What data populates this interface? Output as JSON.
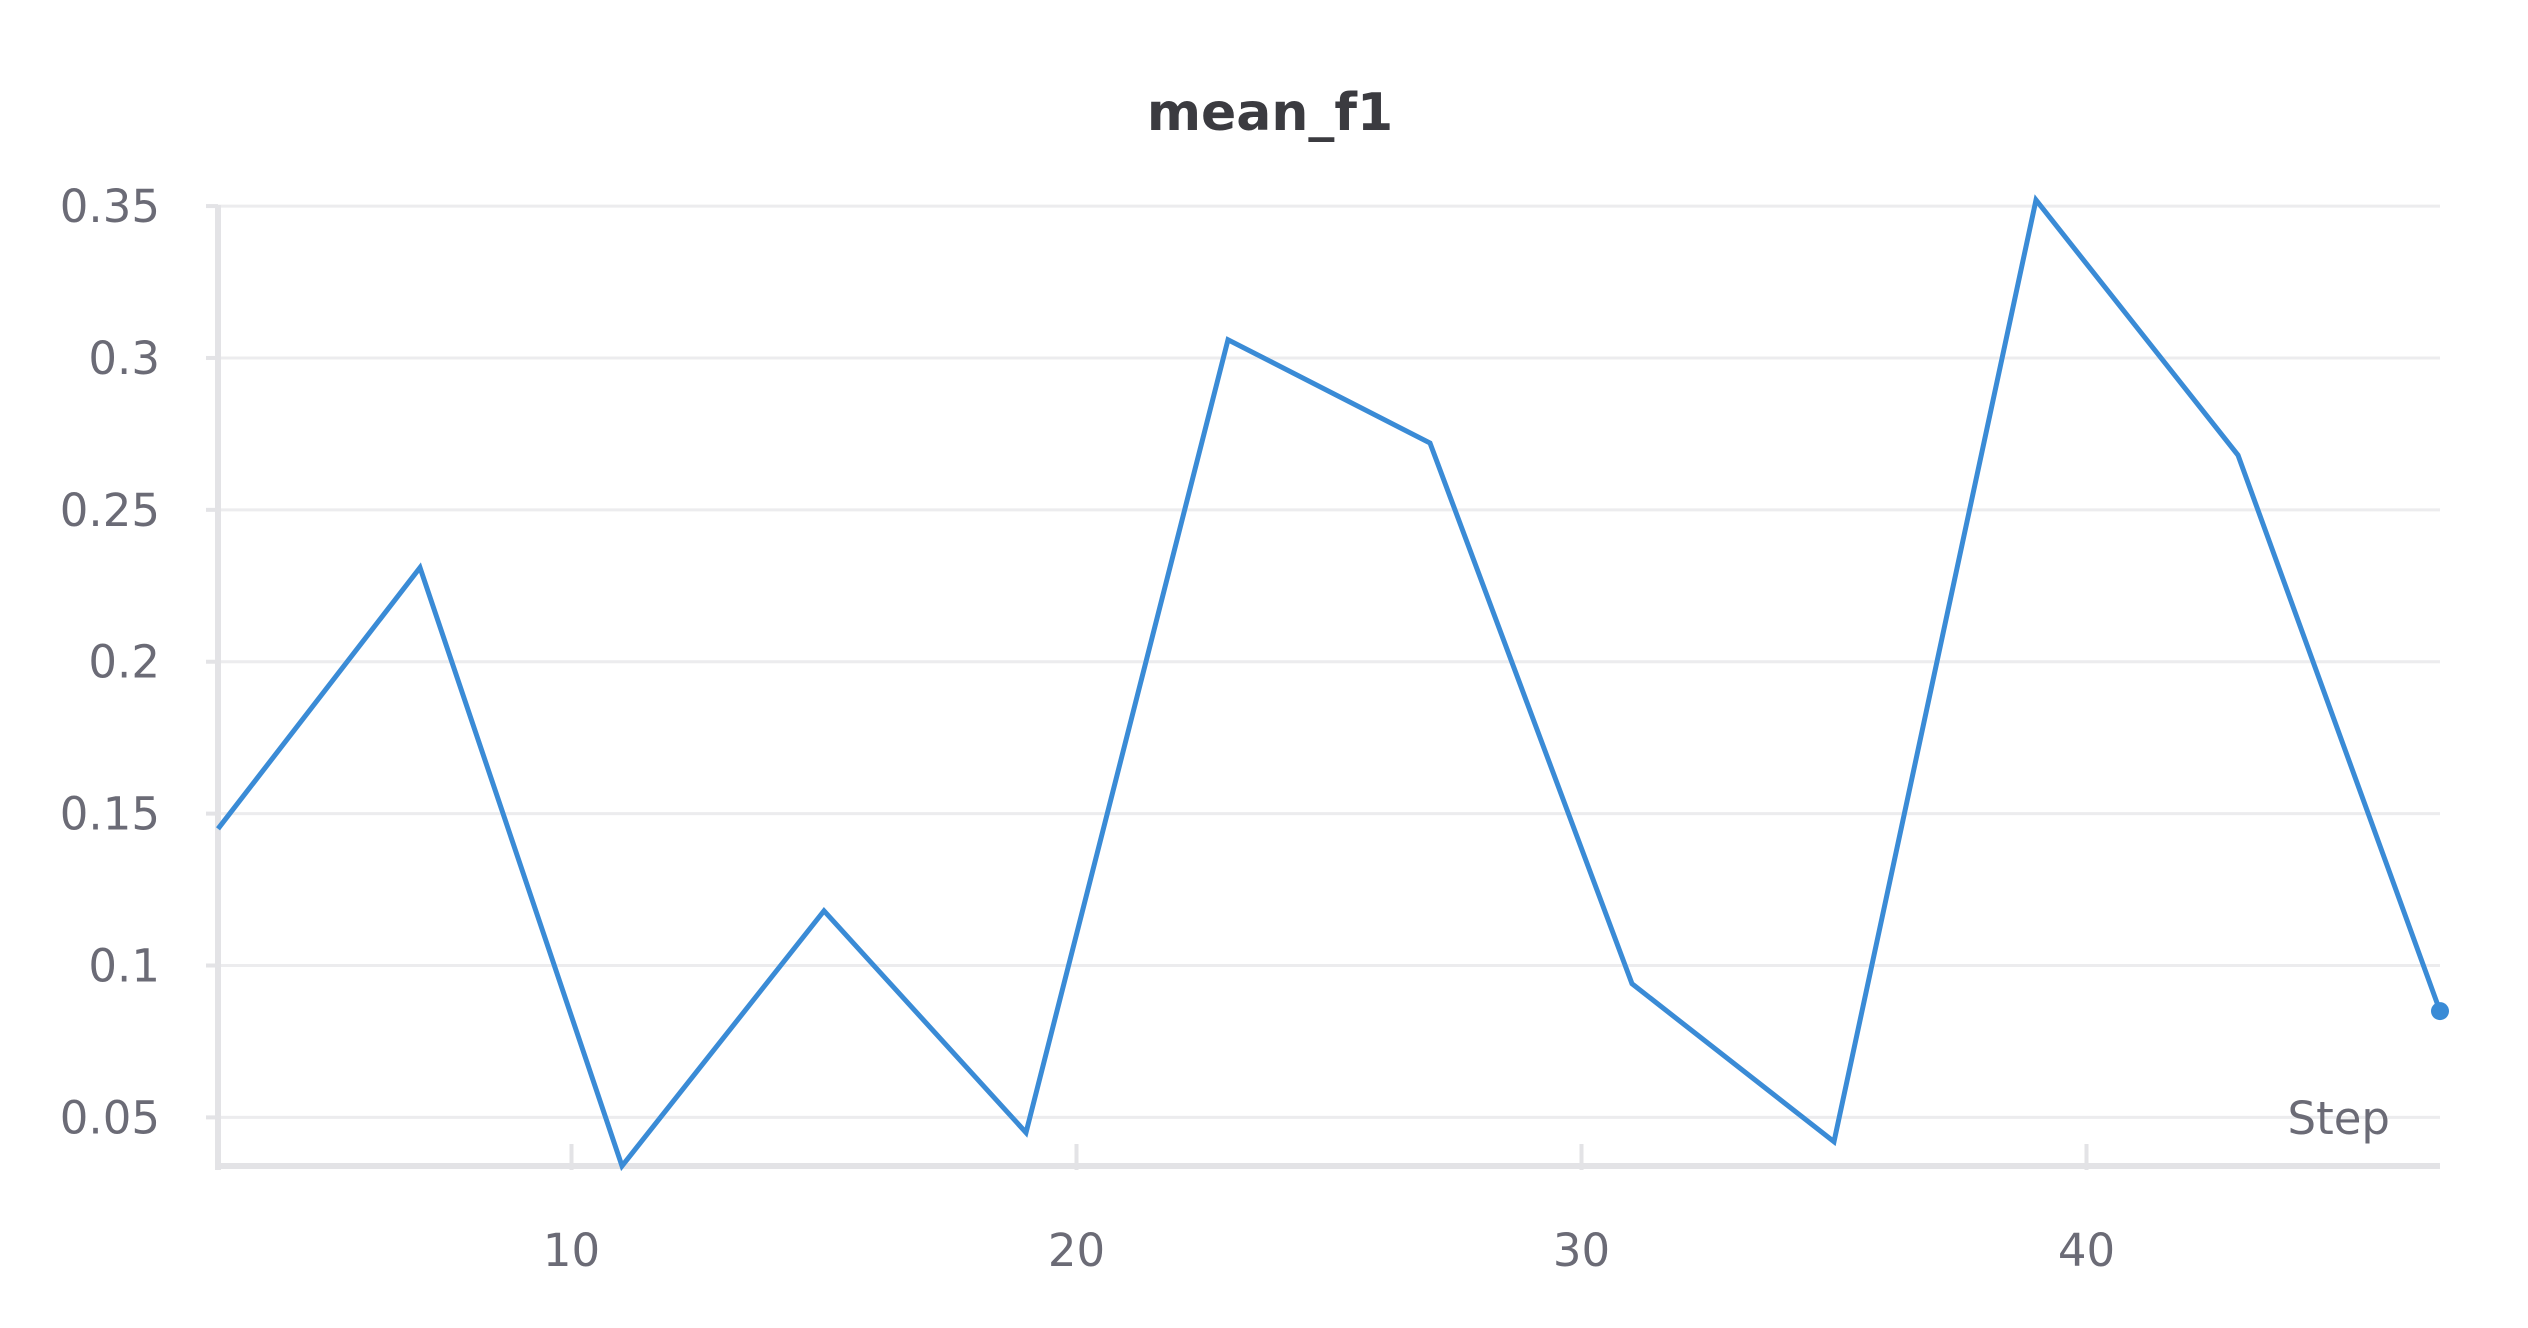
{
  "chart_data": {
    "type": "line",
    "title": "mean_f1",
    "xlabel": "Step",
    "ylabel": "",
    "xlim": [
      3,
      47
    ],
    "ylim": [
      0.034,
      0.352
    ],
    "x_ticks": [
      10,
      20,
      30,
      40
    ],
    "y_ticks": [
      0.05,
      0.1,
      0.15,
      0.2,
      0.25,
      0.3,
      0.35
    ],
    "x_tick_labels": [
      "10",
      "20",
      "30",
      "40"
    ],
    "y_tick_labels": [
      "0.05",
      "0.1",
      "0.15",
      "0.2",
      "0.25",
      "0.3",
      "0.35"
    ],
    "grid": true,
    "color": "#3a8bd6",
    "series": [
      {
        "x": [
          3,
          7,
          11,
          15,
          19,
          23,
          27,
          31,
          35,
          39,
          43,
          47
        ],
        "y": [
          0.145,
          0.231,
          0.034,
          0.118,
          0.045,
          0.306,
          0.272,
          0.094,
          0.042,
          0.352,
          0.268,
          0.085
        ]
      }
    ]
  }
}
